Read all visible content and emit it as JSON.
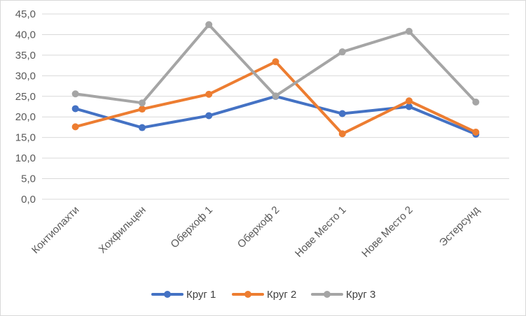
{
  "chart_data": {
    "type": "line",
    "categories": [
      "Контиолахти",
      "Хохфильцен",
      "Оберхоф 1",
      "Оберхоф 2",
      "Нове Место 1",
      "Нове Место 2",
      "Эстерсунд"
    ],
    "series": [
      {
        "name": "Круг 1",
        "color": "#4472c4",
        "values": [
          22.0,
          17.4,
          20.3,
          25.0,
          20.8,
          22.5,
          15.8
        ]
      },
      {
        "name": "Круг 2",
        "color": "#ed7d31",
        "values": [
          17.6,
          21.9,
          25.5,
          33.4,
          15.9,
          23.9,
          16.3
        ]
      },
      {
        "name": "Круг 3",
        "color": "#a5a5a5",
        "values": [
          25.6,
          23.4,
          42.4,
          25.1,
          35.8,
          40.8,
          23.6
        ]
      }
    ],
    "ylim": [
      0,
      45
    ],
    "yticks": [
      "0,0",
      "5,0",
      "10,0",
      "15,0",
      "20,0",
      "25,0",
      "30,0",
      "35,0",
      "40,0",
      "45,0"
    ],
    "grid": true,
    "legend": "bottom",
    "title": "",
    "xlabel": "",
    "ylabel": ""
  }
}
